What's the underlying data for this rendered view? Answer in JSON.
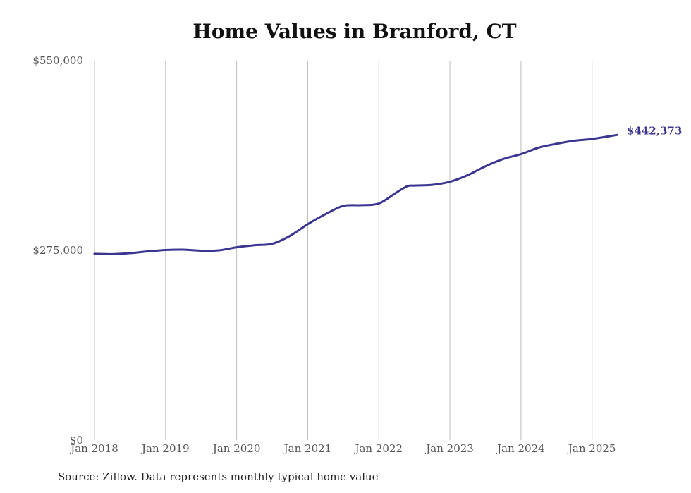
{
  "chart_data": {
    "type": "line",
    "title": "Home Values in Branford, CT",
    "xlabel": "",
    "ylabel": "",
    "ylim": [
      0,
      550000
    ],
    "y_ticks": [
      {
        "value": 0,
        "label": "$0"
      },
      {
        "value": 275000,
        "label": "$275,000"
      },
      {
        "value": 550000,
        "label": "$550,000"
      }
    ],
    "x_ticks": [
      {
        "value": 2018.0,
        "label": "Jan 2018"
      },
      {
        "value": 2019.0,
        "label": "Jan 2019"
      },
      {
        "value": 2020.0,
        "label": "Jan 2020"
      },
      {
        "value": 2021.0,
        "label": "Jan 2021"
      },
      {
        "value": 2022.0,
        "label": "Jan 2022"
      },
      {
        "value": 2023.0,
        "label": "Jan 2023"
      },
      {
        "value": 2024.0,
        "label": "Jan 2024"
      },
      {
        "value": 2025.0,
        "label": "Jan 2025"
      }
    ],
    "xlim": [
      2018.0,
      2025.35
    ],
    "grid": "vertical",
    "series": [
      {
        "color": "#3b3592",
        "end_label": "$442,373",
        "points": [
          [
            2018.0,
            270000
          ],
          [
            2018.25,
            269500
          ],
          [
            2018.5,
            271000
          ],
          [
            2018.75,
            273500
          ],
          [
            2019.0,
            275500
          ],
          [
            2019.25,
            276000
          ],
          [
            2019.5,
            274500
          ],
          [
            2019.75,
            275000
          ],
          [
            2020.0,
            279500
          ],
          [
            2020.25,
            282500
          ],
          [
            2020.5,
            284500
          ],
          [
            2020.75,
            296000
          ],
          [
            2021.0,
            313000
          ],
          [
            2021.25,
            327500
          ],
          [
            2021.5,
            339500
          ],
          [
            2021.75,
            340500
          ],
          [
            2022.0,
            343000
          ],
          [
            2022.25,
            359000
          ],
          [
            2022.4,
            368000
          ],
          [
            2022.5,
            369000
          ],
          [
            2022.75,
            370000
          ],
          [
            2023.0,
            374500
          ],
          [
            2023.25,
            384000
          ],
          [
            2023.5,
            397000
          ],
          [
            2023.75,
            407500
          ],
          [
            2024.0,
            414500
          ],
          [
            2024.25,
            424000
          ],
          [
            2024.5,
            429500
          ],
          [
            2024.75,
            434000
          ],
          [
            2025.0,
            436500
          ],
          [
            2025.35,
            442373
          ]
        ]
      }
    ]
  },
  "source_note": "Source: Zillow. Data represents monthly typical home value"
}
